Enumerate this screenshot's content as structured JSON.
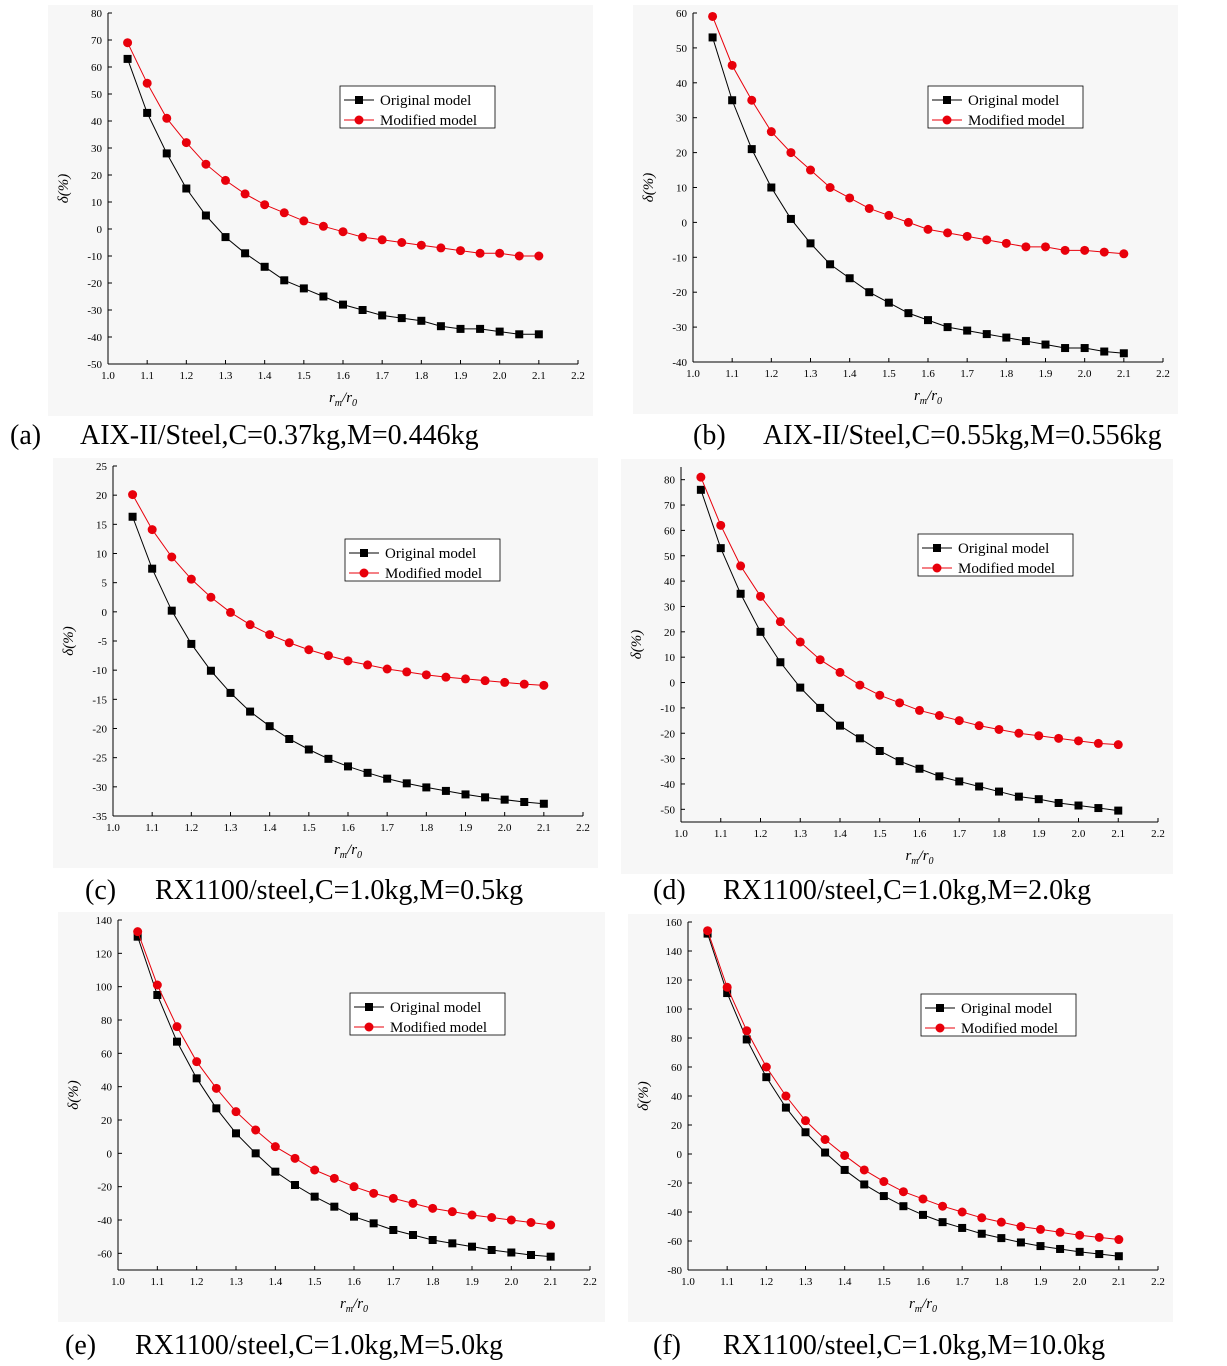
{
  "colors": {
    "original": "#000000",
    "modified": "#e8000b",
    "modified_line": "#e8000b"
  },
  "panels": [
    {
      "label": "(a)",
      "caption": "AIX-II/Steel,C=0.37kg,M=0.446kg"
    },
    {
      "label": "(b)",
      "caption": "AIX-II/Steel,C=0.55kg,M=0.556kg"
    },
    {
      "label": "(c)",
      "caption": "RX1100/steel,C=1.0kg,M=0.5kg"
    },
    {
      "label": "(d)",
      "caption": "RX1100/steel,C=1.0kg,M=2.0kg"
    },
    {
      "label": "(e)",
      "caption": "RX1100/steel,C=1.0kg,M=5.0kg"
    },
    {
      "label": "(f)",
      "caption": "RX1100/steel,C=1.0kg,M=10.0kg"
    }
  ],
  "chart_data": [
    {
      "type": "line",
      "xlabel": "r_m/r_0",
      "ylabel": "δ(%)",
      "xlim": [
        1.0,
        2.2
      ],
      "ylim": [
        -50,
        80
      ],
      "xticks": [
        "1.0",
        "1.1",
        "1.2",
        "1.3",
        "1.4",
        "1.5",
        "1.6",
        "1.7",
        "1.8",
        "1.9",
        "2.0",
        "2.1",
        "2.2"
      ],
      "yticks": [
        "-50",
        "-40",
        "-30",
        "-20",
        "-10",
        "0",
        "10",
        "20",
        "30",
        "40",
        "50",
        "60",
        "70",
        "80"
      ],
      "legend_position": "center-right",
      "x": [
        1.05,
        1.1,
        1.15,
        1.2,
        1.25,
        1.3,
        1.35,
        1.4,
        1.45,
        1.5,
        1.55,
        1.6,
        1.65,
        1.7,
        1.75,
        1.8,
        1.85,
        1.9,
        1.95,
        2.0,
        2.05,
        2.1
      ],
      "series": [
        {
          "name": "Original model",
          "marker": "square",
          "values": [
            63,
            43,
            28,
            15,
            5,
            -3,
            -9,
            -14,
            -19,
            -22,
            -25,
            -28,
            -30,
            -32,
            -33,
            -34,
            -36,
            -37,
            -37,
            -38,
            -39,
            -39
          ]
        },
        {
          "name": "Modified model",
          "marker": "circle",
          "values": [
            69,
            54,
            41,
            32,
            24,
            18,
            13,
            9,
            6,
            3,
            1,
            -1,
            -3,
            -4,
            -5,
            -6,
            -7,
            -8,
            -9,
            -9,
            -10,
            -10
          ]
        }
      ]
    },
    {
      "type": "line",
      "xlabel": "r_m/r_0",
      "ylabel": "δ(%)",
      "xlim": [
        1.0,
        2.2
      ],
      "ylim": [
        -40,
        60
      ],
      "xticks": [
        "1.0",
        "1.1",
        "1.2",
        "1.3",
        "1.4",
        "1.5",
        "1.6",
        "1.7",
        "1.8",
        "1.9",
        "2.0",
        "2.1",
        "2.2"
      ],
      "yticks": [
        "-40",
        "-30",
        "-20",
        "-10",
        "0",
        "10",
        "20",
        "30",
        "40",
        "50",
        "60"
      ],
      "legend_position": "center-right",
      "x": [
        1.05,
        1.1,
        1.15,
        1.2,
        1.25,
        1.3,
        1.35,
        1.4,
        1.45,
        1.5,
        1.55,
        1.6,
        1.65,
        1.7,
        1.75,
        1.8,
        1.85,
        1.9,
        1.95,
        2.0,
        2.05,
        2.1
      ],
      "series": [
        {
          "name": "Original model",
          "marker": "square",
          "values": [
            53,
            35,
            21,
            10,
            1,
            -6,
            -12,
            -16,
            -20,
            -23,
            -26,
            -28,
            -30,
            -31,
            -32,
            -33,
            -34,
            -35,
            -36,
            -36,
            -37,
            -37.5
          ]
        },
        {
          "name": "Modified model",
          "marker": "circle",
          "values": [
            59,
            45,
            35,
            26,
            20,
            15,
            10,
            7,
            4,
            2,
            0,
            -2,
            -3,
            -4,
            -5,
            -6,
            -7,
            -7,
            -8,
            -8,
            -8.5,
            -9
          ]
        }
      ]
    },
    {
      "type": "line",
      "xlabel": "r_m/r_0",
      "ylabel": "δ(%)",
      "xlim": [
        1.0,
        2.2
      ],
      "ylim": [
        -35,
        25
      ],
      "xticks": [
        "1.0",
        "1.1",
        "1.2",
        "1.3",
        "1.4",
        "1.5",
        "1.6",
        "1.7",
        "1.8",
        "1.9",
        "2.0",
        "2.1",
        "2.2"
      ],
      "yticks": [
        "-35",
        "-30",
        "-25",
        "-20",
        "-15",
        "-10",
        "-5",
        "0",
        "5",
        "10",
        "15",
        "20",
        "25"
      ],
      "legend_position": "center-right",
      "x": [
        1.05,
        1.1,
        1.15,
        1.2,
        1.25,
        1.3,
        1.35,
        1.4,
        1.45,
        1.5,
        1.55,
        1.6,
        1.65,
        1.7,
        1.75,
        1.8,
        1.85,
        1.9,
        1.95,
        2.0,
        2.05,
        2.1
      ],
      "series": [
        {
          "name": "Original model",
          "marker": "square",
          "values": [
            16.3,
            7.4,
            0.2,
            -5.5,
            -10.1,
            -13.9,
            -17.1,
            -19.6,
            -21.8,
            -23.6,
            -25.2,
            -26.5,
            -27.6,
            -28.6,
            -29.4,
            -30.1,
            -30.7,
            -31.3,
            -31.8,
            -32.2,
            -32.6,
            -32.9
          ]
        },
        {
          "name": "Modified model",
          "marker": "circle",
          "values": [
            20.1,
            14.1,
            9.4,
            5.6,
            2.5,
            -0.1,
            -2.2,
            -3.9,
            -5.3,
            -6.5,
            -7.5,
            -8.4,
            -9.1,
            -9.8,
            -10.3,
            -10.8,
            -11.2,
            -11.5,
            -11.8,
            -12.1,
            -12.4,
            -12.6
          ]
        }
      ]
    },
    {
      "type": "line",
      "xlabel": "r_m/r_0",
      "ylabel": "δ(%)",
      "xlim": [
        1.0,
        2.2
      ],
      "ylim": [
        -55,
        85
      ],
      "xticks": [
        "1.0",
        "1.1",
        "1.2",
        "1.3",
        "1.4",
        "1.5",
        "1.6",
        "1.7",
        "1.8",
        "1.9",
        "2.0",
        "2.1",
        "2.2"
      ],
      "yticks": [
        "-50",
        "-40",
        "-30",
        "-20",
        "-10",
        "0",
        "10",
        "20",
        "30",
        "40",
        "50",
        "60",
        "70",
        "80"
      ],
      "legend_position": "center-right",
      "x": [
        1.05,
        1.1,
        1.15,
        1.2,
        1.25,
        1.3,
        1.35,
        1.4,
        1.45,
        1.5,
        1.55,
        1.6,
        1.65,
        1.7,
        1.75,
        1.8,
        1.85,
        1.9,
        1.95,
        2.0,
        2.05,
        2.1
      ],
      "series": [
        {
          "name": "Original model",
          "marker": "square",
          "values": [
            76,
            53,
            35,
            20,
            8,
            -2,
            -10,
            -17,
            -22,
            -27,
            -31,
            -34,
            -37,
            -39,
            -41,
            -43,
            -45,
            -46,
            -47.5,
            -48.5,
            -49.5,
            -50.5
          ]
        },
        {
          "name": "Modified model",
          "marker": "circle",
          "values": [
            81,
            62,
            46,
            34,
            24,
            16,
            9,
            4,
            -1,
            -5,
            -8,
            -11,
            -13,
            -15,
            -17,
            -18.5,
            -20,
            -21,
            -22,
            -23,
            -24,
            -24.5
          ]
        }
      ]
    },
    {
      "type": "line",
      "xlabel": "r_m/r_0",
      "ylabel": "δ(%)",
      "xlim": [
        1.0,
        2.2
      ],
      "ylim": [
        -70,
        140
      ],
      "xticks": [
        "1.0",
        "1.1",
        "1.2",
        "1.3",
        "1.4",
        "1.5",
        "1.6",
        "1.7",
        "1.8",
        "1.9",
        "2.0",
        "2.1",
        "2.2"
      ],
      "yticks": [
        "-60",
        "-40",
        "-20",
        "0",
        "20",
        "40",
        "60",
        "80",
        "100",
        "120",
        "140"
      ],
      "legend_position": "center-right",
      "x": [
        1.05,
        1.1,
        1.15,
        1.2,
        1.25,
        1.3,
        1.35,
        1.4,
        1.45,
        1.5,
        1.55,
        1.6,
        1.65,
        1.7,
        1.75,
        1.8,
        1.85,
        1.9,
        1.95,
        2.0,
        2.05,
        2.1
      ],
      "series": [
        {
          "name": "Original model",
          "marker": "square",
          "values": [
            130,
            95,
            67,
            45,
            27,
            12,
            0,
            -11,
            -19,
            -26,
            -32,
            -38,
            -42,
            -46,
            -49,
            -52,
            -54,
            -56,
            -58,
            -59.5,
            -61,
            -62
          ]
        },
        {
          "name": "Modified model",
          "marker": "circle",
          "values": [
            133,
            101,
            76,
            55,
            39,
            25,
            14,
            4,
            -3,
            -10,
            -15,
            -20,
            -24,
            -27,
            -30,
            -33,
            -35,
            -37,
            -38.5,
            -40,
            -41.5,
            -43
          ]
        }
      ]
    },
    {
      "type": "line",
      "xlabel": "r_m/r_0",
      "ylabel": "δ(%)",
      "xlim": [
        1.0,
        2.2
      ],
      "ylim": [
        -80,
        160
      ],
      "xticks": [
        "1.0",
        "1.1",
        "1.2",
        "1.3",
        "1.4",
        "1.5",
        "1.6",
        "1.7",
        "1.8",
        "1.9",
        "2.0",
        "2.1",
        "2.2"
      ],
      "yticks": [
        "-80",
        "-60",
        "-40",
        "-20",
        "0",
        "20",
        "40",
        "60",
        "80",
        "100",
        "120",
        "140",
        "160"
      ],
      "legend_position": "center-right",
      "x": [
        1.05,
        1.1,
        1.15,
        1.2,
        1.25,
        1.3,
        1.35,
        1.4,
        1.45,
        1.5,
        1.55,
        1.6,
        1.65,
        1.7,
        1.75,
        1.8,
        1.85,
        1.9,
        1.95,
        2.0,
        2.05,
        2.1
      ],
      "series": [
        {
          "name": "Original model",
          "marker": "square",
          "values": [
            152,
            111,
            79,
            53,
            32,
            15,
            1,
            -11,
            -21,
            -29,
            -36,
            -42,
            -47,
            -51,
            -55,
            -58,
            -61,
            -63.5,
            -65.5,
            -67.5,
            -69,
            -70.5
          ]
        },
        {
          "name": "Modified model",
          "marker": "circle",
          "values": [
            154,
            115,
            85,
            60,
            40,
            23,
            10,
            -1,
            -11,
            -19,
            -26,
            -31,
            -36,
            -40,
            -44,
            -47,
            -50,
            -52,
            -54,
            -56,
            -57.5,
            -59
          ]
        }
      ]
    }
  ]
}
